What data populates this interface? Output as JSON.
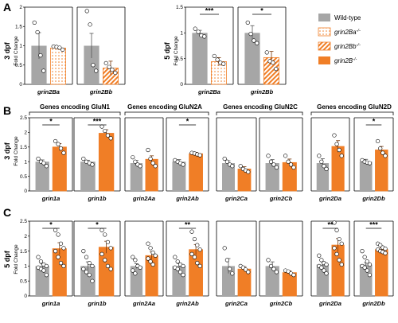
{
  "colors": {
    "wt": "#a6a6a6",
    "mut": "#f07e26",
    "dot": "#ffffff"
  },
  "panel_labels": {
    "A": "A",
    "B": "B",
    "C": "C"
  },
  "row_labels": {
    "a": "3 dpf",
    "b": "3 dpf",
    "c": "5 dpf",
    "a2": "5 dpf"
  },
  "y_title": "Fold Change",
  "group_headers": [
    "Genes encoding GluN1",
    "Genes encoding GluN2A",
    "Genes encoding GluN2C",
    "Genes encoding GluN2D"
  ],
  "legend": [
    {
      "label": "Wild-type",
      "pattern": "solid-grey"
    },
    {
      "label": "grin2Ba",
      "sup": "-/-",
      "pattern": "dotted-orange"
    },
    {
      "label": "grin2Bb",
      "sup": "-/-",
      "pattern": "hatched-orange"
    },
    {
      "label": "grin2B",
      "sup": "-/-",
      "pattern": "solid-orange"
    }
  ],
  "chart_data": [
    {
      "type": "bar",
      "panel": "A",
      "title": "3 dpf",
      "ylabel": "Fold Change",
      "ylim": [
        0,
        2
      ],
      "yticks": [
        0,
        0.5,
        1,
        1.5,
        2
      ],
      "ytick_labels": [
        "0",
        "0.5",
        "1",
        "1.5",
        "2"
      ],
      "categories": [
        "grin2Ba",
        "grin2Bb"
      ],
      "series": [
        {
          "name": "Wild-type",
          "values": [
            1.0,
            1.0
          ]
        },
        {
          "name": "grin2Ba-/-",
          "values": [
            0.94,
            null
          ]
        },
        {
          "name": "grin2Bb-/-",
          "values": [
            null,
            0.42
          ]
        }
      ],
      "sem": [
        [
          0.34,
          0.32
        ],
        [
          0.04,
          0.18
        ]
      ],
      "points": [
        [
          [
            1.6,
            1.35,
            0.75,
            0.35
          ],
          [
            1.9,
            1.55,
            0.5,
            0.35
          ]
        ],
        [
          [
            0.98,
            0.97,
            0.95,
            0.9
          ],
          [
            0.55,
            0.45,
            0.38,
            0.3
          ]
        ]
      ],
      "significance": []
    },
    {
      "type": "bar",
      "panel": "A",
      "title": "5 dpf",
      "ylabel": "Fold Change",
      "ylim": [
        0,
        1.5
      ],
      "yticks": [
        0,
        0.5,
        1,
        1.5
      ],
      "ytick_labels": [
        "0",
        "0.5",
        "1",
        "1.5"
      ],
      "categories": [
        "grin2Ba",
        "grin2Bb"
      ],
      "series": [
        {
          "name": "Wild-type",
          "values": [
            1.0,
            1.0
          ]
        },
        {
          "name": "grin2Ba-/-",
          "values": [
            0.44,
            null
          ]
        },
        {
          "name": "grin2Bb-/-",
          "values": [
            null,
            0.52
          ]
        }
      ],
      "sem": [
        [
          0.05,
          0.14
        ],
        [
          0.08,
          0.12
        ]
      ],
      "points": [
        [
          [
            1.08,
            1.02,
            0.95,
            0.93
          ],
          [
            1.2,
            0.98,
            0.85,
            0.8
          ]
        ],
        [
          [
            0.55,
            0.48,
            0.42,
            0.4
          ],
          [
            0.62,
            0.45,
            0.42,
            0.3
          ]
        ]
      ],
      "significance": [
        "***",
        "*"
      ]
    },
    {
      "type": "bar",
      "panel": "B",
      "title": "3 dpf",
      "ylabel": "Fold Change",
      "ylim": [
        0,
        2.5
      ],
      "yticks": [
        0,
        0.5,
        1,
        1.5,
        2,
        2.5
      ],
      "ytick_labels": [
        "0",
        "0.5",
        "1",
        "1.5",
        "2",
        "2.5"
      ],
      "categories": [
        "grin1a",
        "grin1b",
        "grin2Aa",
        "grin2Ab",
        "grin2Ca",
        "grin2Cb",
        "grin2Da",
        "grin2Db"
      ],
      "series": [
        {
          "name": "Wild-type",
          "values": [
            1.0,
            1.0,
            0.95,
            1.0,
            0.95,
            0.95,
            0.95,
            1.0
          ]
        },
        {
          "name": "grin2B-/-",
          "values": [
            1.5,
            1.97,
            1.08,
            1.27,
            0.75,
            0.97,
            1.52,
            1.4
          ]
        }
      ],
      "sem": [
        [
          0.06,
          0.05,
          0.09,
          0.07,
          0.08,
          0.12,
          0.15,
          0.08
        ],
        [
          0.12,
          0.12,
          0.12,
          0.05,
          0.08,
          0.12,
          0.2,
          0.12
        ]
      ],
      "points": [
        [
          [
            1.1,
            1.0,
            0.95,
            0.85
          ],
          [
            1.1,
            1.0,
            0.95,
            0.9
          ],
          [
            1.15,
            1.0,
            0.9,
            0.85
          ],
          [
            1.05,
            1.0,
            0.95,
            0.9
          ],
          [
            1.1,
            1.0,
            0.9,
            0.85
          ],
          [
            1.2,
            1.0,
            0.9,
            0.8
          ],
          [
            1.2,
            1.0,
            0.85,
            0.75
          ],
          [
            1.05,
            1.0,
            0.97,
            0.95
          ]
        ],
        [
          [
            1.7,
            1.6,
            1.45,
            1.3
          ],
          [
            2.2,
            2.05,
            1.9,
            1.8
          ],
          [
            1.4,
            1.1,
            0.95,
            0.85
          ],
          [
            1.3,
            1.28,
            1.25,
            1.22
          ],
          [
            0.85,
            0.75,
            0.7,
            0.65
          ],
          [
            1.2,
            1.0,
            0.9,
            0.8
          ],
          [
            1.9,
            1.6,
            1.4,
            1.2
          ],
          [
            1.7,
            1.45,
            1.3,
            1.2
          ]
        ]
      ],
      "significance": [
        "*",
        "***",
        "",
        "*",
        "",
        "",
        "",
        "*"
      ]
    },
    {
      "type": "bar",
      "panel": "C",
      "title": "5 dpf",
      "ylabel": "Fold Change",
      "ylim": [
        0,
        2.5
      ],
      "yticks": [
        0,
        0.5,
        1,
        1.5,
        2,
        2.5
      ],
      "ytick_labels": [
        "0",
        "0.5",
        "1",
        "1.5",
        "2",
        "2.5"
      ],
      "categories": [
        "grin1a",
        "grin1b",
        "grin2Aa",
        "grin2Ab",
        "grin2Ca",
        "grin2Cb",
        "grin2Da",
        "grin2Db"
      ],
      "series": [
        {
          "name": "Wild-type",
          "values": [
            1.0,
            1.0,
            1.0,
            1.0,
            1.0,
            1.0,
            1.05,
            1.05
          ]
        },
        {
          "name": "grin2B-/-",
          "values": [
            1.58,
            1.63,
            1.35,
            1.55,
            0.9,
            0.78,
            1.7,
            1.55
          ]
        }
      ],
      "sem": [
        [
          0.07,
          0.14,
          0.08,
          0.08,
          0.25,
          0.14,
          0.09,
          0.06
        ],
        [
          0.2,
          0.2,
          0.12,
          0.17,
          0.08,
          0.06,
          0.22,
          0.05
        ]
      ],
      "points": [
        [
          [
            1.3,
            1.15,
            1.05,
            1.0,
            0.95,
            0.9,
            0.85,
            0.7
          ],
          [
            1.5,
            1.3,
            1.1,
            1.0,
            0.9,
            0.8,
            0.7,
            0.5
          ],
          [
            1.3,
            1.2,
            1.0,
            0.95,
            0.85,
            0.75
          ],
          [
            1.3,
            1.15,
            1.05,
            1.0,
            0.95,
            0.9,
            0.8,
            0.7
          ],
          [
            1.6,
            1.2,
            0.9,
            0.75
          ],
          [
            1.2,
            1.0,
            0.9,
            0.8
          ],
          [
            1.35,
            1.2,
            1.1,
            1.05,
            1.0,
            0.95,
            0.85,
            0.75
          ],
          [
            1.5,
            1.3,
            1.15,
            1.05,
            1.0,
            0.95,
            0.85,
            0.7
          ]
        ],
        [
          [
            2.2,
            2.05,
            1.75,
            1.6,
            1.5,
            1.3,
            1.1,
            1.0
          ],
          [
            2.2,
            2.05,
            1.8,
            1.6,
            1.4,
            1.2,
            1.0,
            0.9
          ],
          [
            1.75,
            1.6,
            1.45,
            1.35,
            1.25,
            1.15,
            1.05
          ],
          [
            2.15,
            1.9,
            1.7,
            1.55,
            1.4,
            1.3,
            1.1,
            1.0
          ],
          [
            1.0,
            0.95,
            0.88,
            0.8
          ],
          [
            0.85,
            0.82,
            0.75,
            0.7
          ],
          [
            2.45,
            2.2,
            1.9,
            1.75,
            1.6,
            1.4,
            1.2,
            1.05
          ],
          [
            1.75,
            1.7,
            1.62,
            1.58,
            1.55,
            1.5,
            1.47,
            1.43
          ]
        ]
      ],
      "significance": [
        "*",
        "*",
        "",
        "**",
        "",
        "",
        "**",
        "***"
      ]
    }
  ]
}
